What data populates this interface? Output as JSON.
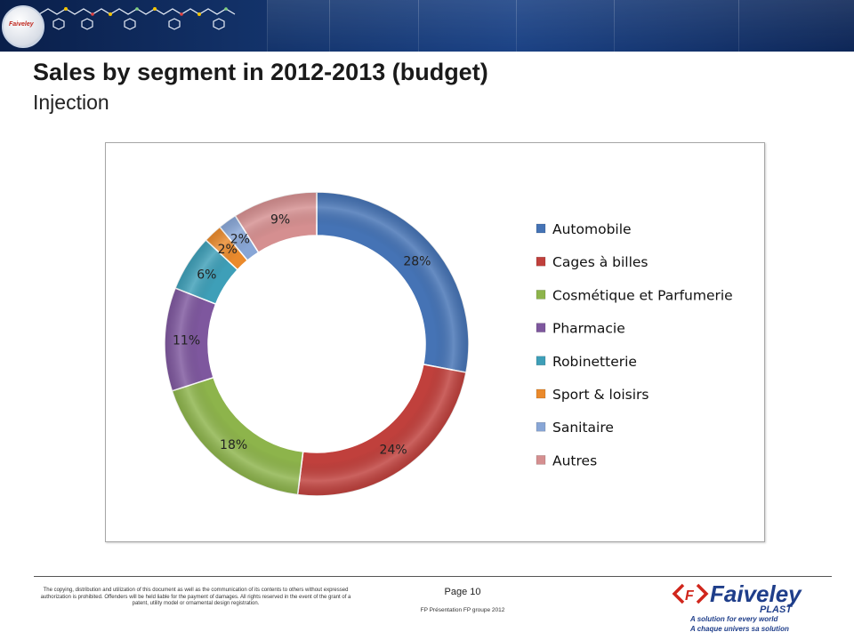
{
  "slide": {
    "title": "Sales by segment in 2012-2013 (budget)",
    "subtitle": "Injection"
  },
  "header": {
    "logo_text": "Faiveley"
  },
  "chart_data": {
    "type": "pie",
    "style": "donut",
    "categories": [
      "Automobile",
      "Cages à billes",
      "Cosmétique et Parfumerie",
      "Pharmacie",
      "Robinetterie",
      "Sport & loisirs",
      "Sanitaire",
      "Autres"
    ],
    "values": [
      28,
      24,
      18,
      11,
      6,
      2,
      2,
      9
    ],
    "labels": [
      "28%",
      "24%",
      "18%",
      "11%",
      "6%",
      "2%",
      "2%",
      "9%"
    ],
    "colors": [
      "#4573b5",
      "#c0403c",
      "#8db44b",
      "#7e579e",
      "#3e9fb8",
      "#ea8a2c",
      "#88a6d6",
      "#d58f90"
    ],
    "legend_position": "right"
  },
  "footer": {
    "legal_text": "The copying, distribution and utilization of this document as well as the communication of its contents to others without expressed authorization is prohibited. Offenders will be held liable for the payment of damages. All rights reserved in the event of the grant of a patent, utility model or ornamental design registration.",
    "page_label": "Page 10",
    "presentation_label": "FP Présentation  FP groupe 2012",
    "brand_name": "Faiveley",
    "brand_sub": "PLAST",
    "tagline_1": "A solution for every world",
    "tagline_2": "A chaque univers sa solution"
  }
}
